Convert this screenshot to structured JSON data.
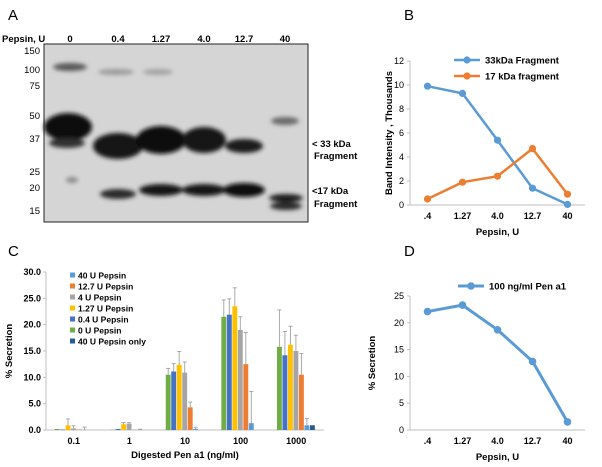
{
  "panels": {
    "a": {
      "letter": "A",
      "lane_header": "Pepsin, U",
      "lane_labels": [
        "0",
        "0.4",
        "1.27",
        "4.0",
        "12.7",
        "40"
      ],
      "mw_markers": [
        "150",
        "100",
        "75",
        "50",
        "37",
        "25",
        "20",
        "15"
      ],
      "annotation_33": "< 33 kDa",
      "annotation_33_line2": "Fragment",
      "annotation_17": "<17 kDa",
      "annotation_17_line2": "Fragment"
    },
    "b": {
      "letter": "B"
    },
    "c": {
      "letter": "C"
    },
    "d": {
      "letter": "D"
    }
  },
  "colors": {
    "blue": "#5b9bd5",
    "orange": "#ed7d31",
    "gray": "#a5a5a5",
    "gold": "#ffc000",
    "mid_blue": "#4472c4",
    "green": "#70ad47",
    "dark_blue": "#255e91",
    "axis": "#bfbfbf"
  },
  "chart_data": [
    {
      "panel": "B",
      "type": "line",
      "categories": [
        ".4",
        "1.27",
        "4.0",
        "12.7",
        "40"
      ],
      "series": [
        {
          "name": "33kDa Fragment",
          "color": "#5b9bd5",
          "values": [
            9.9,
            9.3,
            5.4,
            1.4,
            0.05
          ]
        },
        {
          "name": "17 kDa fragment",
          "color": "#ed7d31",
          "values": [
            0.5,
            1.9,
            2.4,
            4.7,
            0.9
          ]
        }
      ],
      "xlabel": "Pepsin, U",
      "ylabel": "Band Intensity , Thousands",
      "ylim": [
        0,
        12
      ],
      "yticks": [
        0,
        2,
        4,
        6,
        8,
        10,
        12
      ],
      "legend": "top-right",
      "grid": false
    },
    {
      "panel": "C",
      "type": "bar",
      "categories": [
        "0.1",
        "1",
        "10",
        "100",
        "1000"
      ],
      "series": [
        {
          "name": "0 U Pepsin",
          "color": "#70ad47",
          "values": [
            0.2,
            0.05,
            10.5,
            21.5,
            15.8
          ],
          "errors": [
            0,
            0,
            1.2,
            3.2,
            7.0
          ]
        },
        {
          "name": "0.4 U Pepsin",
          "color": "#4472c4",
          "values": [
            0.1,
            0.2,
            11.1,
            21.9,
            14.2
          ],
          "errors": [
            0,
            0,
            1.5,
            3.0,
            4.5
          ]
        },
        {
          "name": "1.27 U Pepsin",
          "color": "#ffc000",
          "values": [
            0.9,
            1.1,
            12.4,
            23.5,
            16.2
          ],
          "errors": [
            1.2,
            0.3,
            2.5,
            3.5,
            3.5
          ]
        },
        {
          "name": "4 U Pepsin",
          "color": "#a5a5a5",
          "values": [
            0.3,
            1.2,
            10.9,
            19.0,
            15.0
          ],
          "errors": [
            0.5,
            0.2,
            2.0,
            2.5,
            3.0
          ]
        },
        {
          "name": "12.7 U Pepsin",
          "color": "#ed7d31",
          "values": [
            0.1,
            0.05,
            4.3,
            12.5,
            10.5
          ],
          "errors": [
            0,
            0,
            1.0,
            6.0,
            4.0
          ]
        },
        {
          "name": "40 U Pepsin",
          "color": "#5b9bd5",
          "values": [
            0.05,
            0.05,
            0.2,
            1.3,
            0.9
          ],
          "errors": [
            0.5,
            0.1,
            0.3,
            6.0,
            1.3
          ]
        },
        {
          "name": "40 U Pepsin only",
          "color": "#255e91",
          "values": [
            0.0,
            0.0,
            0.0,
            0.0,
            0.9
          ],
          "errors": [
            0,
            0,
            0,
            0,
            0
          ]
        }
      ],
      "legend_order": [
        "40 U Pepsin",
        "12.7 U Pepsin",
        "4 U Pepsin",
        "1.27 U Pepsin",
        "0.4 U Pepsin",
        "0 U Pepsin",
        "40 U Pepsin only"
      ],
      "xlabel": "Digested Pen a1 (ng/ml)",
      "ylabel": "% Secretion",
      "ylim": [
        0,
        30
      ],
      "yticks": [
        "0.0",
        "5.0",
        "10.0",
        "15.0",
        "20.0",
        "25.0",
        "30.0"
      ],
      "legend": "top-left",
      "grid": false
    },
    {
      "panel": "D",
      "type": "line",
      "categories": [
        ".4",
        "1.27",
        "4.0",
        "12.7",
        "40"
      ],
      "series": [
        {
          "name": "100 ng/ml Pen a1",
          "color": "#5b9bd5",
          "values": [
            22.1,
            23.3,
            18.7,
            12.8,
            1.5
          ]
        }
      ],
      "xlabel": "Pepsin, U",
      "ylabel": "% Secretion",
      "ylim": [
        0,
        25
      ],
      "yticks": [
        0,
        5,
        10,
        15,
        20,
        25
      ],
      "legend": "top",
      "grid": false
    }
  ]
}
